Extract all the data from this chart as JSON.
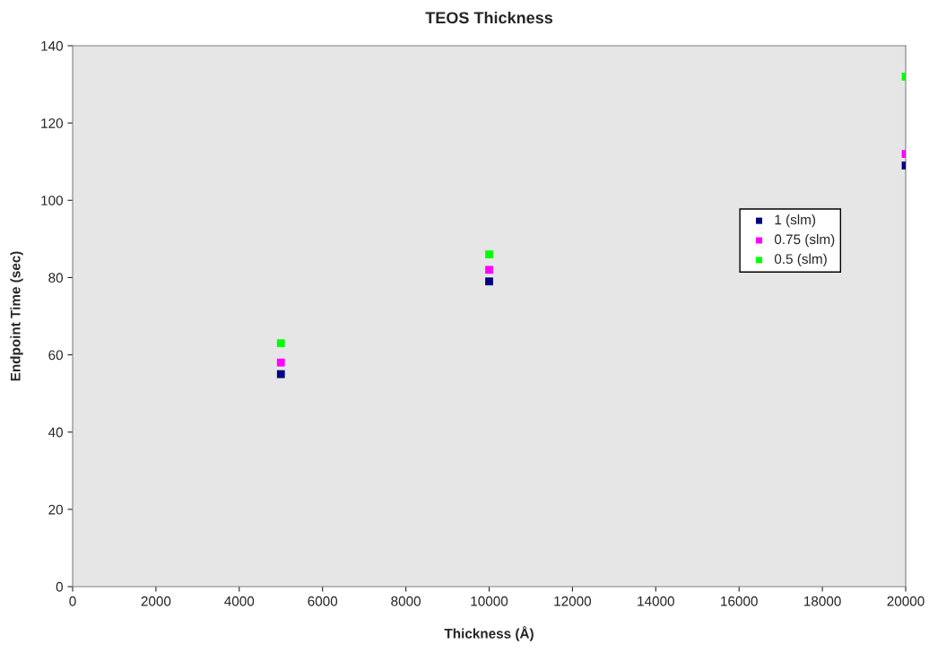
{
  "chart_data": {
    "type": "scatter",
    "title": "TEOS Thickness",
    "xlabel": "Thickness (Å)",
    "ylabel": "Endpoint Time (sec)",
    "x": [
      5000,
      10000,
      20000
    ],
    "series": [
      {
        "name": "1 (slm)",
        "color": "#000080",
        "values": [
          55,
          79,
          109
        ]
      },
      {
        "name": "0.75 (slm)",
        "color": "#ff00ff",
        "values": [
          58,
          82,
          112
        ]
      },
      {
        "name": "0.5 (slm)",
        "color": "#00ff00",
        "values": [
          63,
          86,
          132
        ]
      }
    ],
    "xlim": [
      0,
      20000
    ],
    "xticks": [
      0,
      2000,
      4000,
      6000,
      8000,
      10000,
      12000,
      14000,
      16000,
      18000,
      20000
    ],
    "ylim": [
      0,
      140
    ],
    "yticks": [
      0,
      20,
      40,
      60,
      80,
      100,
      120,
      140
    ],
    "marker": "square",
    "grid": false,
    "legend": "right"
  }
}
